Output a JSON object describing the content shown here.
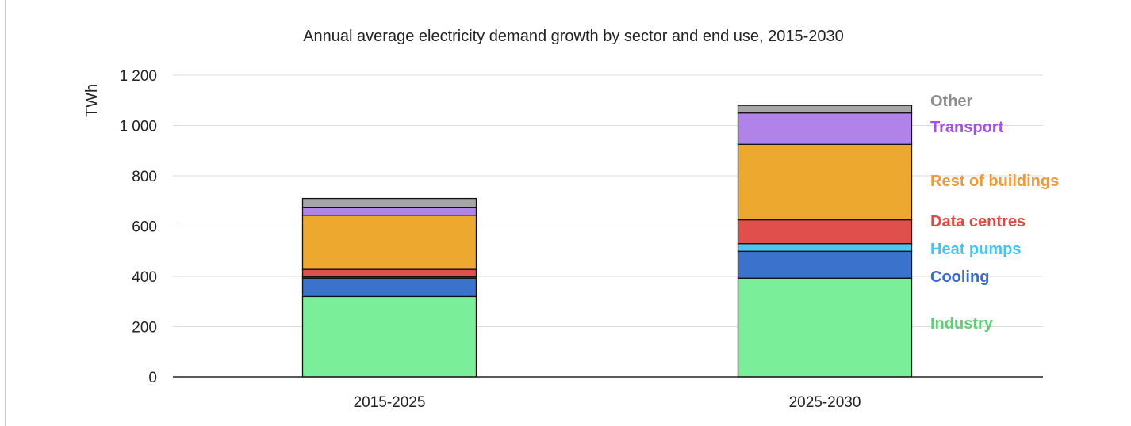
{
  "chart_data": {
    "type": "bar",
    "stacked": true,
    "title": "Annual average electricity demand growth by sector and end use, 2015-2030",
    "ylabel": "TWh",
    "xlabel": "",
    "ylim": [
      0,
      1200
    ],
    "yticks": [
      0,
      200,
      400,
      600,
      800,
      1000,
      1200
    ],
    "ytick_labels": [
      "0",
      "200",
      "400",
      "600",
      "800",
      "1 000",
      "1 200"
    ],
    "grid": true,
    "legend_placement": "right",
    "categories": [
      "2015-2025",
      "2025-2030"
    ],
    "series": [
      {
        "name": "Industry",
        "color": "#7aee98",
        "label_color": "#5fcf73",
        "values": [
          320,
          393
        ]
      },
      {
        "name": "Cooling",
        "color": "#3b73cc",
        "label_color": "#3a6bc7",
        "values": [
          73,
          107
        ]
      },
      {
        "name": "Heat pumps",
        "color": "#4cc6f2",
        "label_color": "#45c3f2",
        "values": [
          5,
          30
        ]
      },
      {
        "name": "Data centres",
        "color": "#e04f4b",
        "label_color": "#df4a44",
        "values": [
          30,
          95
        ]
      },
      {
        "name": "Rest of buildings",
        "color": "#eda92f",
        "label_color": "#ee9a3a",
        "values": [
          215,
          300
        ]
      },
      {
        "name": "Transport",
        "color": "#b083e8",
        "label_color": "#a54fe6",
        "values": [
          30,
          125
        ]
      },
      {
        "name": "Other",
        "color": "#a6a6a6",
        "label_color": "#8e8e8e",
        "values": [
          37,
          30
        ]
      }
    ]
  }
}
